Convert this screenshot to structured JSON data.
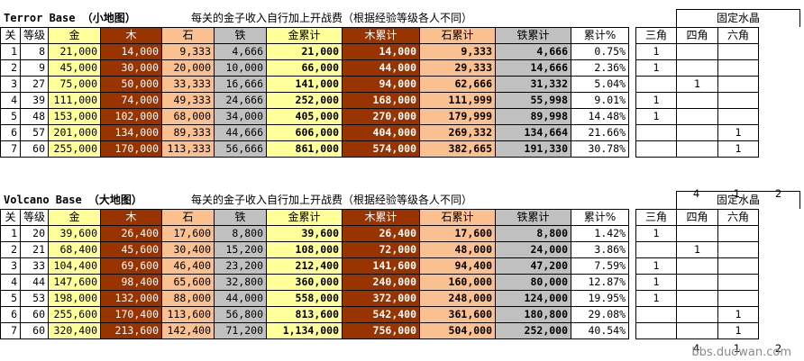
{
  "columns": [
    "关",
    "等级",
    "金",
    "木",
    "石",
    "铁",
    "金累计",
    "木累计",
    "石累计",
    "铁累计",
    "累计%"
  ],
  "crystal_title": "固定水晶",
  "crystal_columns": [
    "三角",
    "四角",
    "六角"
  ],
  "sheets": [
    {
      "title": "Terror Base （小地图）",
      "note": "每关的金子收入自行加上开战费（根据经验等级各人不同）",
      "rows": [
        [
          "1",
          "8",
          "21,000",
          "14,000",
          "9,333",
          "4,666",
          "21,000",
          "14,000",
          "9,333",
          "4,666",
          "0.75%",
          "1",
          "",
          ""
        ],
        [
          "2",
          "9",
          "45,000",
          "30,000",
          "20,000",
          "10,000",
          "66,000",
          "44,000",
          "29,333",
          "14,666",
          "2.36%",
          "1",
          "",
          ""
        ],
        [
          "3",
          "27",
          "75,000",
          "50,000",
          "33,333",
          "16,666",
          "141,000",
          "94,000",
          "62,666",
          "31,332",
          "5.04%",
          "",
          "1",
          ""
        ],
        [
          "4",
          "39",
          "111,000",
          "74,000",
          "49,333",
          "24,666",
          "252,000",
          "168,000",
          "111,999",
          "55,998",
          "9.01%",
          "1",
          "",
          ""
        ],
        [
          "5",
          "48",
          "153,000",
          "102,000",
          "68,000",
          "34,000",
          "405,000",
          "270,000",
          "179,999",
          "89,998",
          "14.48%",
          "1",
          "",
          ""
        ],
        [
          "6",
          "57",
          "201,000",
          "134,000",
          "89,333",
          "44,666",
          "606,000",
          "404,000",
          "269,332",
          "134,664",
          "21.66%",
          "",
          "",
          "1"
        ],
        [
          "7",
          "60",
          "255,000",
          "170,000",
          "113,333",
          "56,666",
          "861,000",
          "574,000",
          "382,665",
          "191,330",
          "30.78%",
          "",
          "",
          "1"
        ]
      ],
      "totals": [
        "4",
        "1",
        "2"
      ]
    },
    {
      "title": "Volcano Base （大地图）",
      "note": "每关的金子收入自行加上开战费（根据经验等级各人不同）",
      "rows": [
        [
          "1",
          "20",
          "39,600",
          "26,400",
          "17,600",
          "8,800",
          "39,600",
          "26,400",
          "17,600",
          "8,800",
          "1.42%",
          "1",
          "",
          ""
        ],
        [
          "2",
          "21",
          "68,400",
          "45,600",
          "30,400",
          "15,200",
          "108,000",
          "72,000",
          "48,000",
          "24,000",
          "3.86%",
          "",
          "1",
          ""
        ],
        [
          "3",
          "33",
          "104,400",
          "69,600",
          "46,400",
          "23,200",
          "212,400",
          "141,600",
          "94,400",
          "47,200",
          "7.59%",
          "1",
          "",
          ""
        ],
        [
          "4",
          "44",
          "147,600",
          "98,400",
          "65,600",
          "32,800",
          "360,000",
          "240,000",
          "160,000",
          "80,000",
          "12.87%",
          "1",
          "",
          ""
        ],
        [
          "5",
          "53",
          "198,000",
          "132,000",
          "88,000",
          "44,000",
          "558,000",
          "372,000",
          "248,000",
          "124,000",
          "19.95%",
          "1",
          "",
          ""
        ],
        [
          "6",
          "60",
          "255,600",
          "170,400",
          "113,600",
          "56,800",
          "813,600",
          "542,400",
          "361,600",
          "180,800",
          "29.08%",
          "",
          "",
          "1"
        ],
        [
          "7",
          "60",
          "320,400",
          "213,600",
          "142,400",
          "71,200",
          "1,134,000",
          "756,000",
          "504,000",
          "252,000",
          "40.54%",
          "",
          "",
          "1"
        ]
      ],
      "totals": [
        "4",
        "1",
        "2"
      ]
    }
  ],
  "watermark": "bbs.duowan.com"
}
